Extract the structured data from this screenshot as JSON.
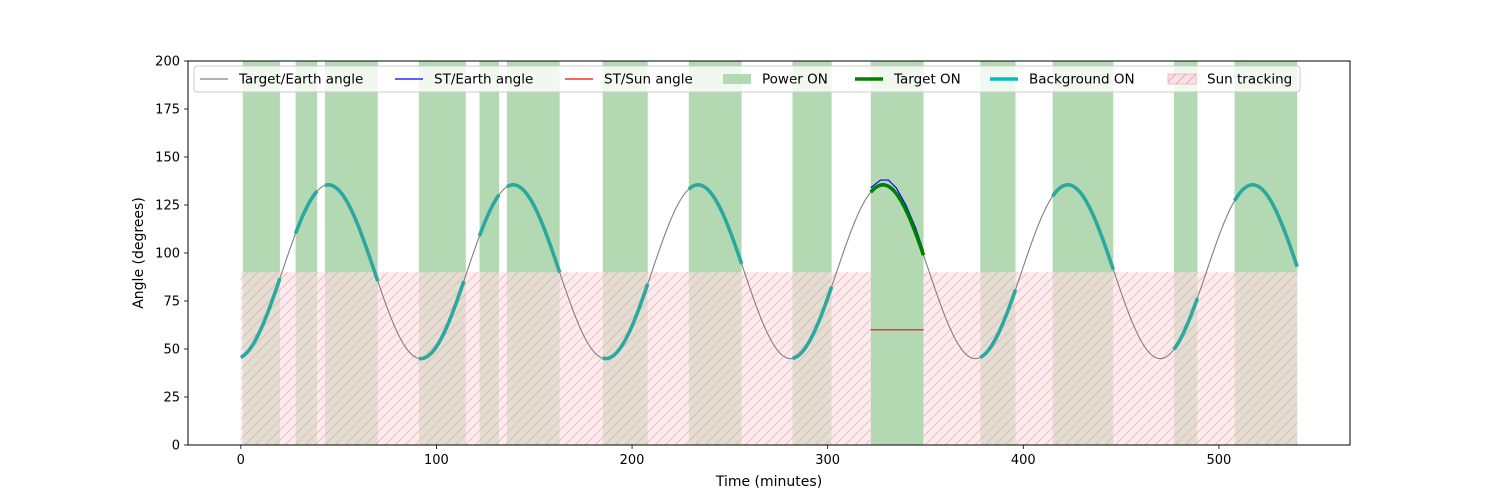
{
  "chart_data": {
    "type": "line",
    "title": "",
    "xlabel": "Time (minutes)",
    "ylabel": "Angle (degrees)",
    "xlim": [
      -27,
      567
    ],
    "ylim": [
      0,
      200
    ],
    "xticks": [
      0,
      100,
      200,
      300,
      400,
      500
    ],
    "yticks": [
      0,
      25,
      50,
      75,
      100,
      125,
      150,
      175,
      200
    ],
    "grid": false,
    "legend_placement": "top",
    "legend": [
      {
        "label": "Target/Earth angle",
        "kind": "line",
        "color": "#808080"
      },
      {
        "label": "ST/Earth angle",
        "kind": "line",
        "color": "#0000ff"
      },
      {
        "label": "ST/Sun angle",
        "kind": "line",
        "color": "#ff0000"
      },
      {
        "label": "Power ON",
        "kind": "patch",
        "color": "#b3d9b3"
      },
      {
        "label": "Target ON",
        "kind": "thickline",
        "color": "#008000"
      },
      {
        "label": "Background ON",
        "kind": "thickline",
        "color": "#00bfbf"
      },
      {
        "label": "Sun tracking",
        "kind": "hatch",
        "color": "#ffe0e4"
      }
    ],
    "target_earth_angle": {
      "x_start": 0,
      "x_end": 540,
      "period_minutes": 94.5,
      "min_deg": 45,
      "max_deg": 135.5,
      "phase_minimum_at": -2.5
    },
    "power_on_intervals": [
      [
        1,
        20
      ],
      [
        28,
        39
      ],
      [
        43,
        70
      ],
      [
        91,
        115
      ],
      [
        122,
        132
      ],
      [
        136,
        163
      ],
      [
        185,
        208
      ],
      [
        229,
        256
      ],
      [
        282,
        302
      ],
      [
        322,
        349
      ],
      [
        378,
        396
      ],
      [
        415,
        446
      ],
      [
        477,
        489
      ],
      [
        508,
        540
      ]
    ],
    "background_on_intervals": [
      [
        0,
        20
      ],
      [
        28,
        39
      ],
      [
        43,
        70
      ],
      [
        91,
        114
      ],
      [
        122,
        132
      ],
      [
        136,
        163
      ],
      [
        185,
        208
      ],
      [
        229,
        256
      ],
      [
        282,
        302
      ],
      [
        378,
        396
      ],
      [
        415,
        446
      ],
      [
        477,
        489
      ],
      [
        508,
        540
      ]
    ],
    "target_on_interval": [
      322,
      349
    ],
    "st_earth_angle": {
      "x": [
        322,
        327,
        331,
        335,
        340,
        345,
        349
      ],
      "y": [
        134,
        138,
        138,
        134,
        125,
        113,
        101
      ]
    },
    "st_sun_angle": {
      "x": [
        322,
        349
      ],
      "y": [
        60,
        60
      ]
    },
    "sun_tracking_intervals": [
      [
        0,
        322
      ],
      [
        349,
        540
      ]
    ],
    "sun_tracking_max_deg": 90,
    "colors": {
      "target_earth": "#808080",
      "st_earth": "#0000ff",
      "st_sun": "#ff0000",
      "power_on": "#b3d9b3",
      "target_on": "#008000",
      "background_on": "#2ca8a0",
      "sun_fill": "#ffe0e4",
      "sun_hatch": "#e8a0a8"
    }
  }
}
